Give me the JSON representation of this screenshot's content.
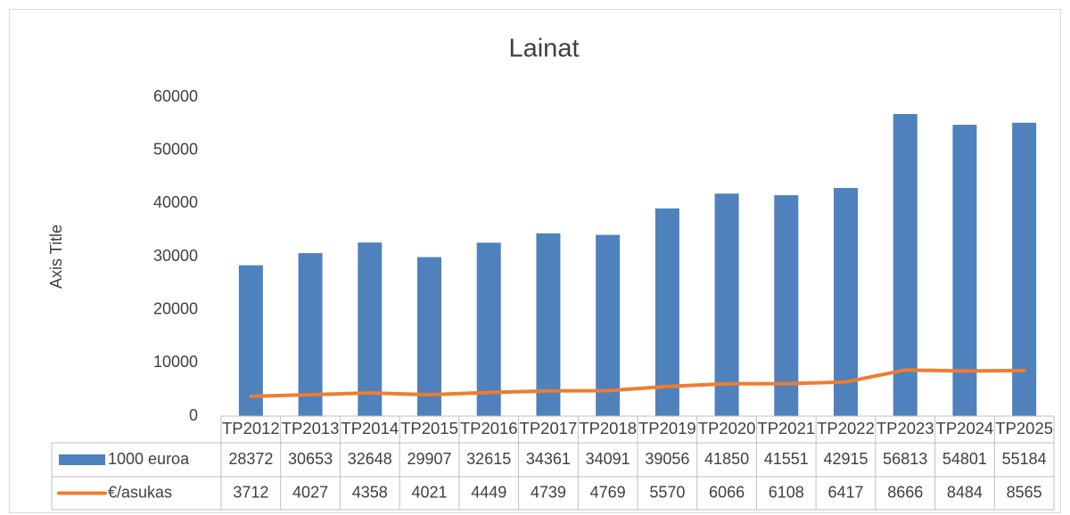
{
  "chart_data": {
    "type": "bar",
    "title": "Lainat",
    "y_axis_title": "Axis Title",
    "categories": [
      "TP2012",
      "TP2013",
      "TP2014",
      "TP2015",
      "TP2016",
      "TP2017",
      "TP2018",
      "TP2019",
      "TP2020",
      "TP2021",
      "TP2022",
      "TP2023",
      "TP2024",
      "TP2025"
    ],
    "series": [
      {
        "name": "1000 euroa",
        "type": "bar",
        "color": "#4f81bd",
        "values": [
          28372,
          30653,
          32648,
          29907,
          32615,
          34361,
          34091,
          39056,
          41850,
          41551,
          42915,
          56813,
          54801,
          55184
        ]
      },
      {
        "name": "€/asukas",
        "type": "line",
        "color": "#ed7d31",
        "values": [
          3712,
          4027,
          4358,
          4021,
          4449,
          4739,
          4769,
          5570,
          6066,
          6108,
          6417,
          8666,
          8484,
          8565
        ]
      }
    ],
    "ylim": [
      0,
      60000
    ],
    "yticks": [
      0,
      10000,
      20000,
      30000,
      40000,
      50000,
      60000
    ],
    "grid": false,
    "data_table": true
  }
}
